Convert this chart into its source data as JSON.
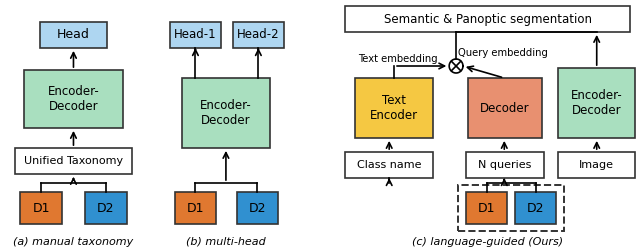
{
  "fig_width": 6.4,
  "fig_height": 2.52,
  "bg_color": "#ffffff",
  "colors": {
    "blue_box": "#aed6f1",
    "green_box": "#a9dfbf",
    "orange_d1": "#e07830",
    "blue_d2": "#3090d0",
    "yellow_box": "#f5c842",
    "salmon_box": "#e89070",
    "white_box": "#ffffff",
    "border": "#333333"
  },
  "caption_a": "(a) manual taxonomy",
  "caption_b": "(b) multi-head",
  "caption_c": "(c) language-guided (Ours)"
}
